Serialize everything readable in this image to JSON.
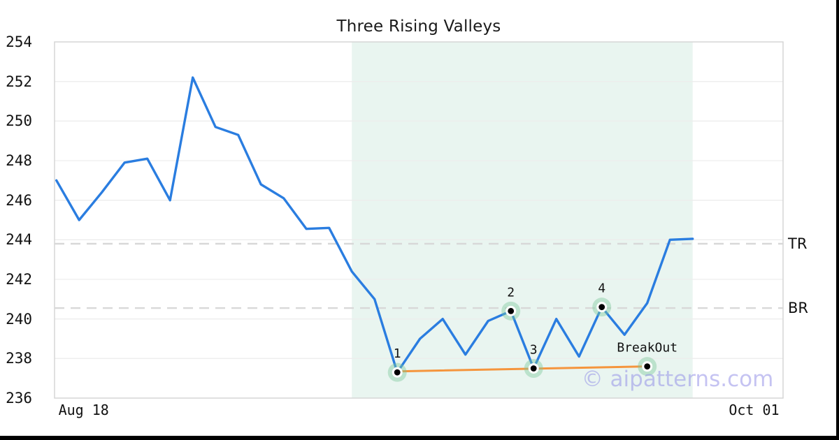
{
  "chart_data": {
    "type": "line",
    "title": "Three Rising Valleys",
    "ylim": [
      236,
      254
    ],
    "y_ticks": [
      236,
      238,
      240,
      242,
      244,
      246,
      248,
      250,
      252,
      254
    ],
    "x_tick_labels": [
      "Aug 18",
      "Oct 01"
    ],
    "x_tick_indices": [
      1.2,
      30.7
    ],
    "grid": true,
    "legend": "none",
    "series": [
      {
        "name": "price",
        "values": [
          247.0,
          245.0,
          246.4,
          247.9,
          248.1,
          246.0,
          252.2,
          249.7,
          249.3,
          246.8,
          246.1,
          244.55,
          244.6,
          242.4,
          241.0,
          237.3,
          239.0,
          240.0,
          238.2,
          239.9,
          240.4,
          237.5,
          240.0,
          238.1,
          240.6,
          239.2,
          240.8,
          244.0,
          244.05
        ]
      }
    ],
    "trendline": {
      "start": {
        "index": 15,
        "value": 237.35
      },
      "end": {
        "index": 26,
        "value": 237.6
      }
    },
    "markers": [
      {
        "index": 15,
        "value": 237.3,
        "label": "1"
      },
      {
        "index": 20,
        "value": 240.4,
        "label": "2"
      },
      {
        "index": 21,
        "value": 237.5,
        "label": "3"
      },
      {
        "index": 24,
        "value": 240.6,
        "label": "4"
      },
      {
        "index": 26,
        "value": 237.6,
        "label": "BreakOut",
        "on_trendline": true
      }
    ],
    "levels": [
      {
        "label": "TR",
        "value": 243.8
      },
      {
        "label": "BR",
        "value": 240.55
      }
    ],
    "pattern_region": {
      "start_index": 13,
      "end_index": 28
    },
    "watermark": "© aipatterns.com"
  },
  "colors": {
    "price_line": "#2a7de0",
    "trendline": "#f5953d",
    "pattern_region": "#e9f5f0",
    "marker_halo": "#7dc79c",
    "marker_ring": "#ffffff",
    "marker_dot": "#000000",
    "level_dash": "#d8d8d8",
    "gridline": "#ededed",
    "plot_border": "#d5d5d5",
    "watermark": "#c8c5f3",
    "text": "#111111",
    "frame_bar": "#000000"
  }
}
